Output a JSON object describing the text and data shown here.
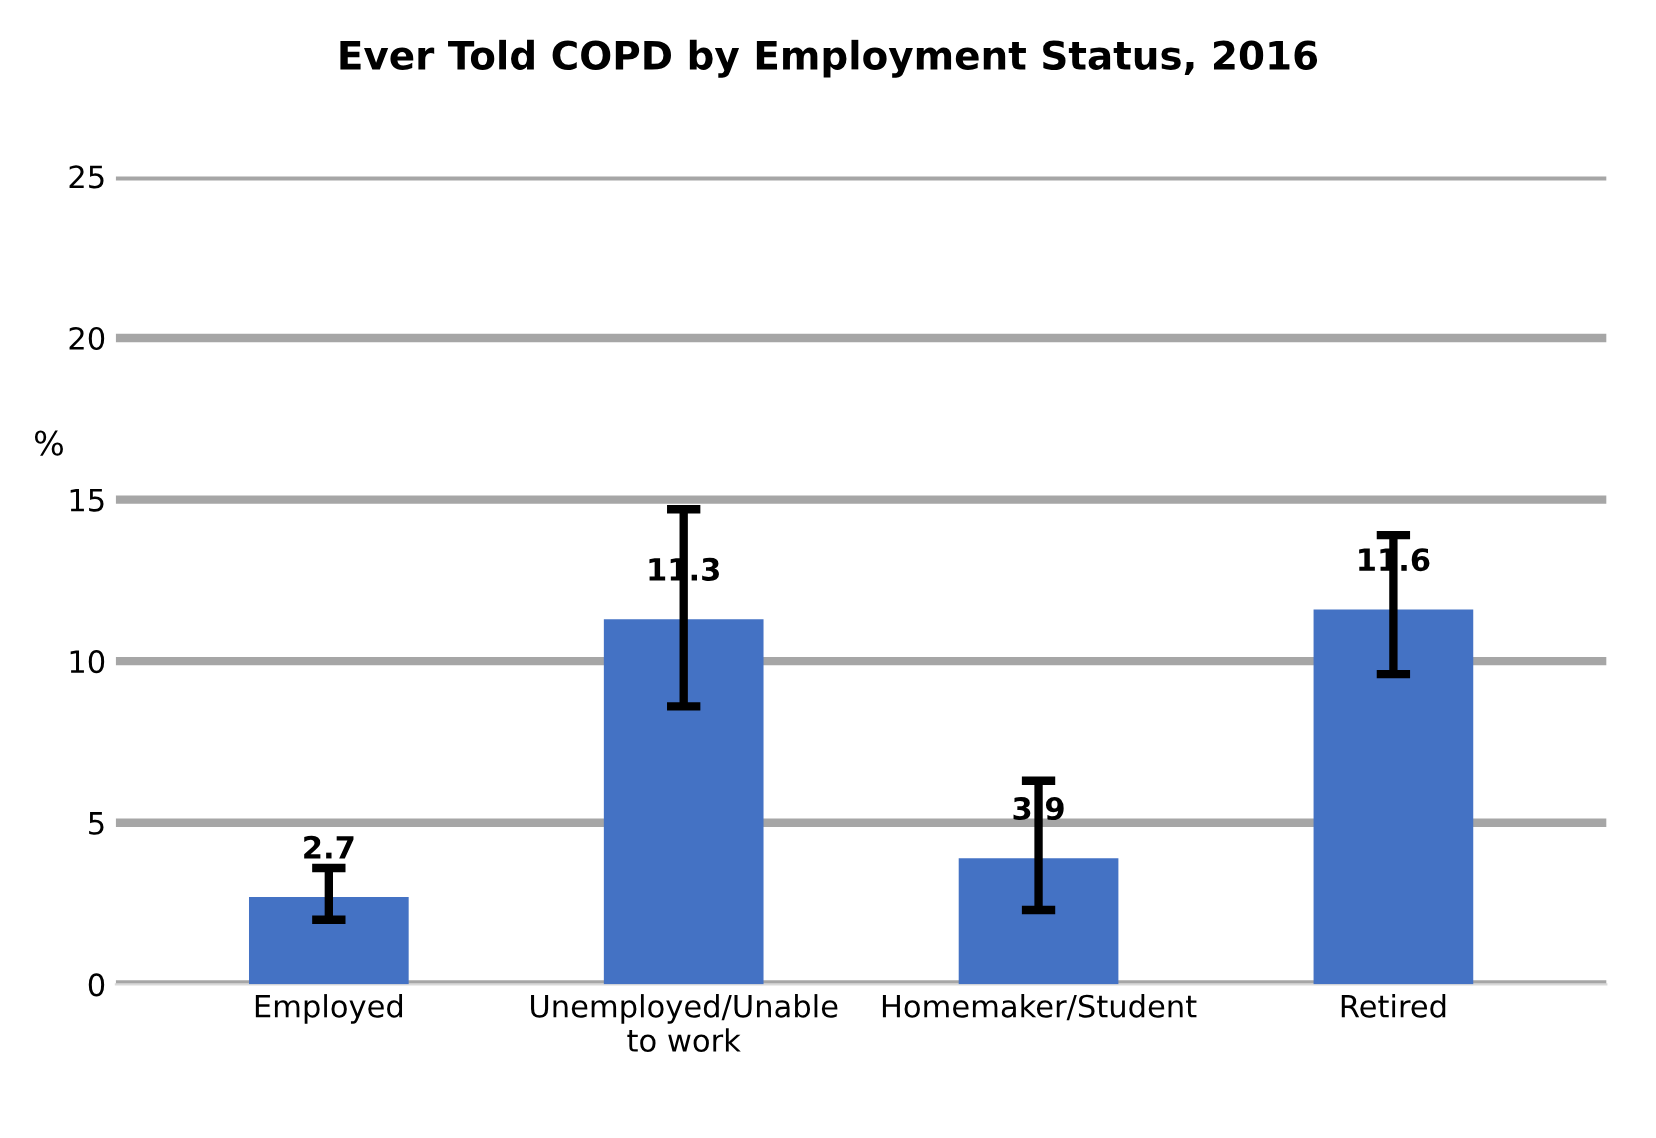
{
  "chart_data": {
    "type": "bar",
    "title": "Ever Told COPD by Employment Status, 2016",
    "ylabel": "%",
    "categories": [
      "Employed",
      "Unemployed/Unable\nto work",
      "Homemaker/Student",
      "Retired"
    ],
    "values": [
      2.7,
      11.3,
      3.9,
      11.6
    ],
    "color": "#4472c4",
    "errors": [
      [
        2.0,
        3.6
      ],
      [
        8.6,
        14.7
      ],
      [
        2.3,
        6.3
      ],
      [
        9.6,
        13.9
      ]
    ],
    "ylim": [
      0,
      25
    ],
    "yticks": [
      0,
      5,
      10,
      15,
      20,
      25
    ],
    "grid": "y",
    "data_labels": true
  }
}
